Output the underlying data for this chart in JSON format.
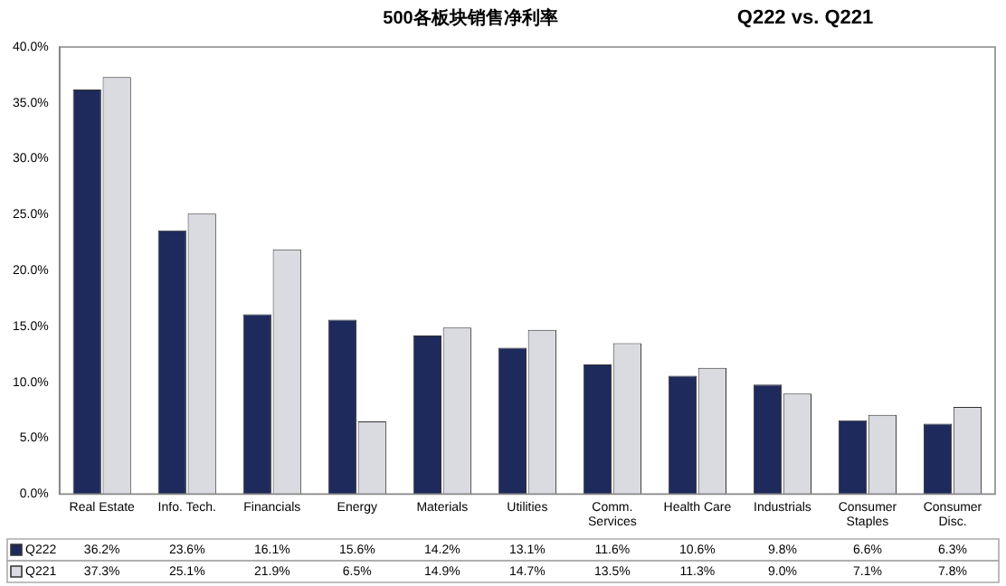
{
  "chart_data": {
    "type": "bar",
    "title": "500各板块销售净利率",
    "subtitle": "Q222 vs. Q221",
    "categories": [
      "Real Estate",
      "Info. Tech.",
      "Financials",
      "Energy",
      "Materials",
      "Utilities",
      "Comm. Services",
      "Health Care",
      "Industrials",
      "Consumer Staples",
      "Consumer Disc."
    ],
    "series": [
      {
        "name": "Q222",
        "color": "#1f2a5c",
        "values": [
          36.2,
          23.6,
          16.1,
          15.6,
          14.2,
          13.1,
          11.6,
          10.6,
          9.8,
          6.6,
          6.3
        ],
        "value_labels": [
          "36.2%",
          "23.6%",
          "16.1%",
          "15.6%",
          "14.2%",
          "13.1%",
          "11.6%",
          "10.6%",
          "9.8%",
          "6.6%",
          "6.3%"
        ]
      },
      {
        "name": "Q221",
        "color": "#d9dbe0",
        "values": [
          37.3,
          25.1,
          21.9,
          6.5,
          14.9,
          14.7,
          13.5,
          11.3,
          9.0,
          7.1,
          7.8
        ],
        "value_labels": [
          "37.3%",
          "25.1%",
          "21.9%",
          "6.5%",
          "14.9%",
          "14.7%",
          "13.5%",
          "11.3%",
          "9.0%",
          "7.1%",
          "7.8%"
        ]
      }
    ],
    "ylim": [
      0,
      40
    ],
    "yticks": [
      {
        "value": 0,
        "label": "0.0%"
      },
      {
        "value": 5,
        "label": "5.0%"
      },
      {
        "value": 10,
        "label": "10.0%"
      },
      {
        "value": 15,
        "label": "15.0%"
      },
      {
        "value": 20,
        "label": "20.0%"
      },
      {
        "value": 25,
        "label": "25.0%"
      },
      {
        "value": 30,
        "label": "30.0%"
      },
      {
        "value": 35,
        "label": "35.0%"
      },
      {
        "value": 40,
        "label": "40.0%"
      }
    ],
    "grid": false,
    "legend": "bottom"
  }
}
